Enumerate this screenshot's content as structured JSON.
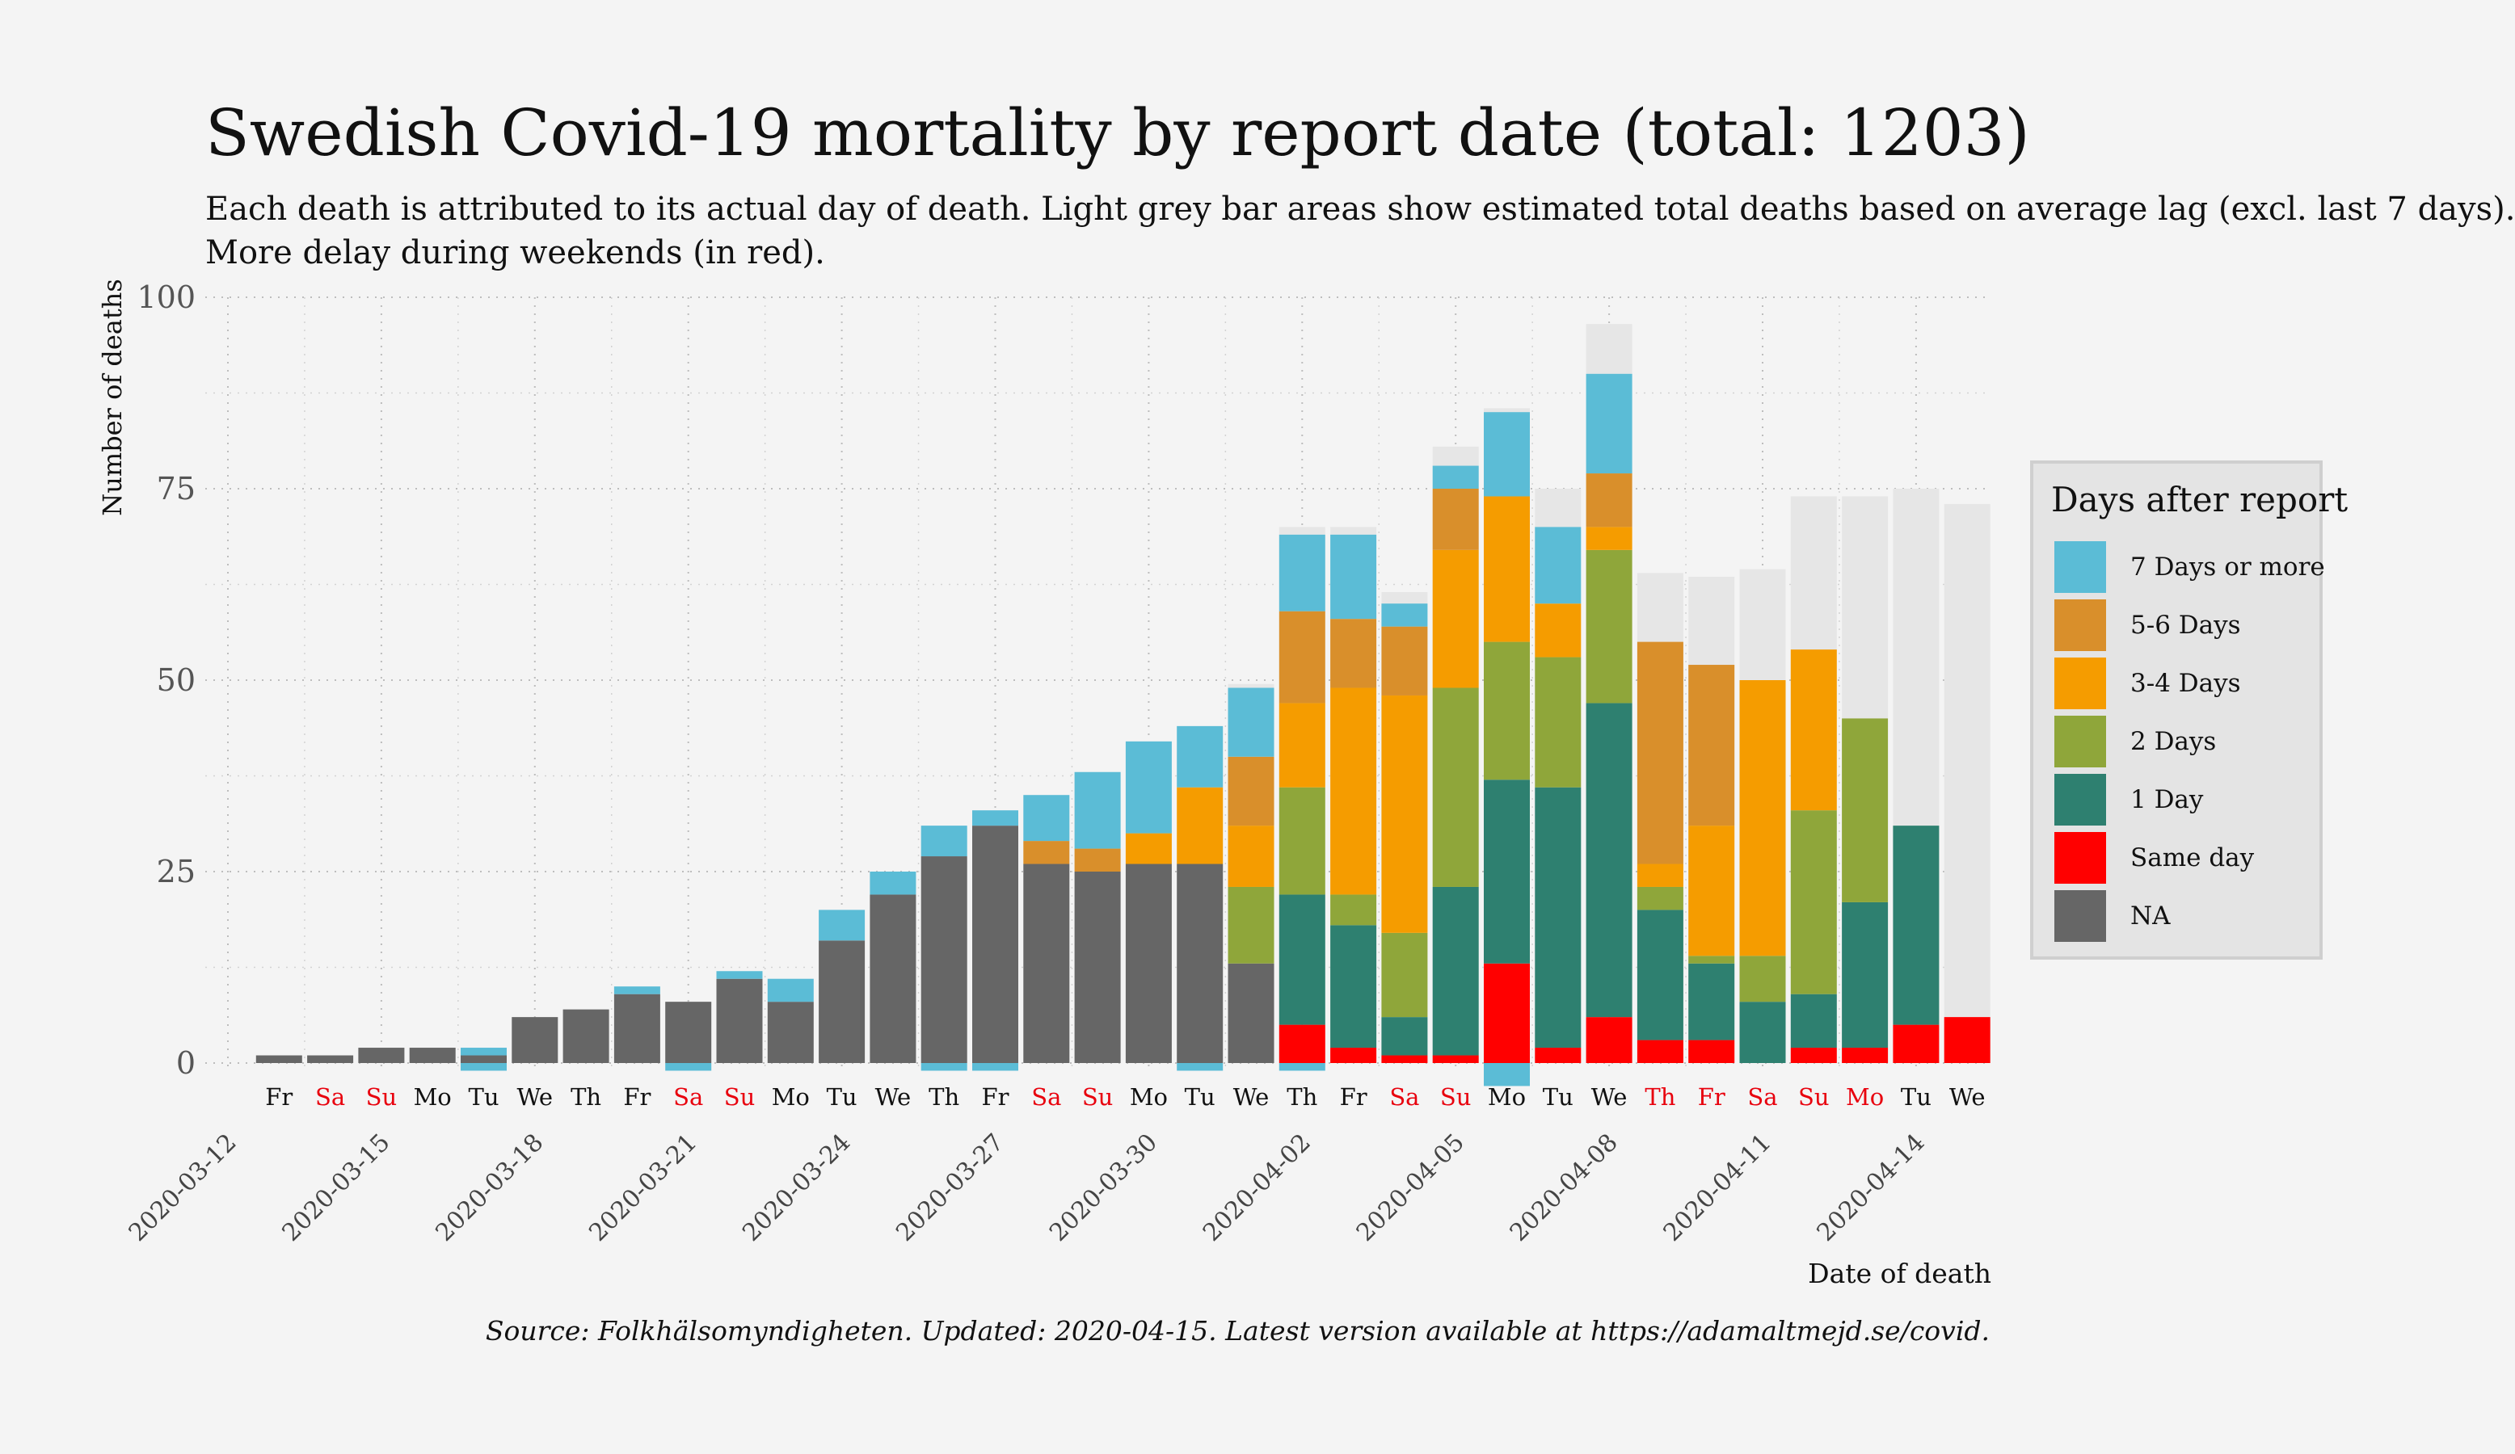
{
  "title": "Swedish Covid-19 mortality by report date (total: 1203)",
  "subtitle_line1": "Each death is attributed to its actual day of death. Light grey bar areas show estimated total deaths based on average lag (excl. last 7 days).",
  "subtitle_line2": "More delay during weekends (in red).",
  "caption": "Source: Folkhälsomyndigheten. Updated: 2020-04-15. Latest version available at https://adamaltmejd.se/covid.",
  "colors": {
    "estimate": "#e6e6e6",
    "weekend_label": "#e8000d",
    "weekday_label": "#111111",
    "background": "#f4f4f4"
  },
  "legend": {
    "title": "Days after report",
    "items": [
      {
        "label": "7 Days or more",
        "color": "#5bbcd6"
      },
      {
        "label": "5-6 Days",
        "color": "#d98f2b"
      },
      {
        "label": "3-4 Days",
        "color": "#f59c00"
      },
      {
        "label": "2 Days",
        "color": "#8fa63a"
      },
      {
        "label": "1 Day",
        "color": "#2e8070"
      },
      {
        "label": "Same day",
        "color": "#ff0000"
      },
      {
        "label": "NA",
        "color": "#666666"
      }
    ]
  },
  "chart_data": {
    "type": "bar",
    "stacked": true,
    "ylabel": "Number of deaths",
    "xlabel": "Date of death",
    "ylim": [
      0,
      100
    ],
    "yticks": [
      0,
      25,
      50,
      75,
      100
    ],
    "grid": true,
    "legend_position": "right",
    "date_ticks": [
      "2020-03-12",
      "2020-03-15",
      "2020-03-18",
      "2020-03-21",
      "2020-03-24",
      "2020-03-27",
      "2020-03-30",
      "2020-04-02",
      "2020-04-05",
      "2020-04-08",
      "2020-04-11",
      "2020-04-14"
    ],
    "days": [
      {
        "date": "2020-03-13",
        "weekday": "Fr",
        "red": false,
        "na": 1
      },
      {
        "date": "2020-03-14",
        "weekday": "Sa",
        "red": true,
        "na": 1
      },
      {
        "date": "2020-03-15",
        "weekday": "Su",
        "red": true,
        "na": 2
      },
      {
        "date": "2020-03-16",
        "weekday": "Mo",
        "red": false,
        "na": 2
      },
      {
        "date": "2020-03-17",
        "weekday": "Tu",
        "red": false,
        "na": 1,
        "d7": 1,
        "neg7": 1
      },
      {
        "date": "2020-03-18",
        "weekday": "We",
        "red": false,
        "na": 6
      },
      {
        "date": "2020-03-19",
        "weekday": "Th",
        "red": false,
        "na": 7
      },
      {
        "date": "2020-03-20",
        "weekday": "Fr",
        "red": false,
        "na": 9,
        "d7": 1
      },
      {
        "date": "2020-03-21",
        "weekday": "Sa",
        "red": true,
        "na": 8,
        "neg7": 1
      },
      {
        "date": "2020-03-22",
        "weekday": "Su",
        "red": true,
        "na": 11,
        "d7": 1
      },
      {
        "date": "2020-03-23",
        "weekday": "Mo",
        "red": false,
        "na": 8,
        "d7": 3
      },
      {
        "date": "2020-03-24",
        "weekday": "Tu",
        "red": false,
        "na": 16,
        "d7": 4
      },
      {
        "date": "2020-03-25",
        "weekday": "We",
        "red": false,
        "na": 22,
        "d7": 3
      },
      {
        "date": "2020-03-26",
        "weekday": "Th",
        "red": false,
        "na": 27,
        "d7": 4,
        "neg7": 1
      },
      {
        "date": "2020-03-27",
        "weekday": "Fr",
        "red": false,
        "na": 31,
        "d7": 2,
        "neg7": 1
      },
      {
        "date": "2020-03-28",
        "weekday": "Sa",
        "red": true,
        "na": 26,
        "d56": 3,
        "d7": 6
      },
      {
        "date": "2020-03-29",
        "weekday": "Su",
        "red": true,
        "na": 25,
        "d56": 3,
        "d7": 10
      },
      {
        "date": "2020-03-30",
        "weekday": "Mo",
        "red": false,
        "na": 26,
        "d34": 4,
        "d7": 12
      },
      {
        "date": "2020-03-31",
        "weekday": "Tu",
        "red": false,
        "na": 26,
        "d34": 10,
        "d7": 8,
        "neg7": 1
      },
      {
        "date": "2020-04-01",
        "weekday": "We",
        "red": false,
        "na": 13,
        "d2": 10,
        "d34": 8,
        "d56": 9,
        "d7": 9,
        "est": 49.5
      },
      {
        "date": "2020-04-02",
        "weekday": "Th",
        "red": false,
        "same": 5,
        "d1": 17,
        "d2": 14,
        "d34": 11,
        "d56": 12,
        "d7": 10,
        "neg7": 1,
        "est": 70
      },
      {
        "date": "2020-04-03",
        "weekday": "Fr",
        "red": false,
        "same": 2,
        "d1": 16,
        "d2": 4,
        "d34": 27,
        "d56": 9,
        "d7": 11,
        "est": 70
      },
      {
        "date": "2020-04-04",
        "weekday": "Sa",
        "red": true,
        "same": 1,
        "d1": 5,
        "d2": 11,
        "d34": 31,
        "d56": 9,
        "d7": 3,
        "est": 61.5
      },
      {
        "date": "2020-04-05",
        "weekday": "Su",
        "red": true,
        "same": 1,
        "d1": 22,
        "d2": 26,
        "d34": 18,
        "d56": 8,
        "d7": 3,
        "est": 80.5
      },
      {
        "date": "2020-04-06",
        "weekday": "Mo",
        "red": false,
        "same": 13,
        "d1": 24,
        "d2": 18,
        "d34": 19,
        "d7": 11,
        "neg7": 3,
        "est": 85.5
      },
      {
        "date": "2020-04-07",
        "weekday": "Tu",
        "red": false,
        "same": 2,
        "d1": 34,
        "d2": 17,
        "d34": 7,
        "d7": 10,
        "est": 75
      },
      {
        "date": "2020-04-08",
        "weekday": "We",
        "red": false,
        "same": 6,
        "d1": 41,
        "d2": 20,
        "d34": 3,
        "d56": 7,
        "d7": 13,
        "est": 96.5
      },
      {
        "date": "2020-04-09",
        "weekday": "Th",
        "red": true,
        "same": 3,
        "d1": 17,
        "d2": 3,
        "d34": 3,
        "d56": 29,
        "est": 64
      },
      {
        "date": "2020-04-10",
        "weekday": "Fr",
        "red": true,
        "same": 3,
        "d1": 10,
        "d2": 1,
        "d34": 17,
        "d56": 21,
        "est": 63.5
      },
      {
        "date": "2020-04-11",
        "weekday": "Sa",
        "red": true,
        "d1": 8,
        "d2": 6,
        "d34": 36,
        "est": 64.5
      },
      {
        "date": "2020-04-12",
        "weekday": "Su",
        "red": true,
        "same": 2,
        "d1": 7,
        "d2": 24,
        "d34": 21,
        "est": 74
      },
      {
        "date": "2020-04-13",
        "weekday": "Mo",
        "red": true,
        "same": 2,
        "d1": 19,
        "d2": 24,
        "est": 74
      },
      {
        "date": "2020-04-14",
        "weekday": "Tu",
        "red": false,
        "same": 5,
        "d1": 26,
        "est": 75
      },
      {
        "date": "2020-04-15",
        "weekday": "We",
        "red": false,
        "same": 6,
        "est": 73
      }
    ]
  }
}
